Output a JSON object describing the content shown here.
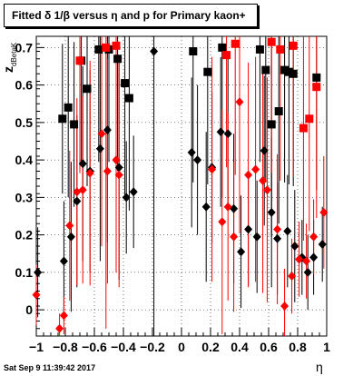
{
  "chart_data": {
    "type": "scatter",
    "title": "Fitted δ 1/β versus η and p for Primary kaon+",
    "xlabel": "η",
    "ylabel_main": "z",
    "ylabel_sub": "dBetaK",
    "xlim": [
      -1,
      1
    ],
    "ylim": [
      -0.07,
      0.73
    ],
    "x_ticks": [
      -1,
      -0.8,
      -0.6,
      -0.4,
      -0.2,
      0,
      0.2,
      0.4,
      0.6,
      0.8,
      1
    ],
    "x_tick_labels": [
      "−1",
      "−0.8",
      "−0.6",
      "−0.4",
      "−0.2",
      "0",
      "0.2",
      "0.4",
      "0.6",
      "0.8",
      "1"
    ],
    "y_ticks": [
      0,
      0.1,
      0.2,
      0.3,
      0.4,
      0.5,
      0.6,
      0.7
    ],
    "y_tick_labels": [
      "0",
      "0.1",
      "0.2",
      "0.3",
      "0.4",
      "0.5",
      "0.6",
      "0.7"
    ],
    "grid": true,
    "colors": {
      "black": "#000000",
      "red": "#ff0000"
    },
    "series": [
      {
        "color": "black",
        "marker": "square",
        "points": [
          {
            "x": -0.82,
            "y": 0.51,
            "err": 0.2
          },
          {
            "x": -0.78,
            "y": 0.54,
            "err": 0.24
          },
          {
            "x": -0.74,
            "y": 0.495,
            "err": 0.22
          },
          {
            "x": -0.69,
            "y": 0.665,
            "err": 0.27
          },
          {
            "x": -0.65,
            "y": 0.59,
            "err": 0.26
          },
          {
            "x": -0.57,
            "y": 0.695,
            "err": 0.3
          },
          {
            "x": -0.5,
            "y": 0.695,
            "err": 0.3
          },
          {
            "x": -0.44,
            "y": 0.67,
            "err": 0.3
          },
          {
            "x": -0.39,
            "y": 0.605,
            "err": 0.3
          },
          {
            "x": -0.36,
            "y": 0.565,
            "err": 0.3
          },
          {
            "x": 0.08,
            "y": 0.69,
            "err": 0.35
          },
          {
            "x": 0.18,
            "y": 0.635,
            "err": 0.3
          },
          {
            "x": 0.28,
            "y": 0.7,
            "err": 0.4
          },
          {
            "x": 0.54,
            "y": 0.695,
            "err": 0.3
          },
          {
            "x": 0.58,
            "y": 0.64,
            "err": 0.3
          },
          {
            "x": 0.62,
            "y": 0.495,
            "err": 0.3
          },
          {
            "x": 0.67,
            "y": 0.53,
            "err": 0.3
          },
          {
            "x": 0.71,
            "y": 0.64,
            "err": 0.3
          },
          {
            "x": 0.74,
            "y": 0.635,
            "err": 0.3
          },
          {
            "x": 0.77,
            "y": 0.63,
            "err": 0.3
          },
          {
            "x": 0.93,
            "y": 0.62,
            "err": 0.3
          }
        ]
      },
      {
        "color": "black",
        "marker": "diamond",
        "points": [
          {
            "x": -0.99,
            "y": 0.1,
            "err": 0.12
          },
          {
            "x": -0.81,
            "y": 0.13,
            "err": 0.16
          },
          {
            "x": -0.76,
            "y": 0.195,
            "err": 0.2
          },
          {
            "x": -0.72,
            "y": 0.29,
            "err": 0.23
          },
          {
            "x": -0.68,
            "y": 0.39,
            "err": 0.26
          },
          {
            "x": -0.63,
            "y": 0.37,
            "err": 0.27
          },
          {
            "x": -0.56,
            "y": 0.43,
            "err": 0.3
          },
          {
            "x": -0.51,
            "y": 0.48,
            "err": 0.3
          },
          {
            "x": -0.43,
            "y": 0.38,
            "err": 0.3
          },
          {
            "x": -0.38,
            "y": 0.3,
            "err": 0.15
          },
          {
            "x": -0.33,
            "y": 0.315,
            "err": 0.15
          },
          {
            "x": -0.19,
            "y": 0.69,
            "err": 0.8
          },
          {
            "x": 0.07,
            "y": 0.42,
            "err": 0.2
          },
          {
            "x": 0.11,
            "y": 0.4,
            "err": 0.2
          },
          {
            "x": 0.17,
            "y": 0.275,
            "err": 0.2
          },
          {
            "x": 0.21,
            "y": 0.38,
            "err": 0.2
          },
          {
            "x": 0.27,
            "y": 0.475,
            "err": 0.2
          },
          {
            "x": 0.32,
            "y": 0.47,
            "err": 0.2
          },
          {
            "x": 0.36,
            "y": 0.27,
            "err": 0.2
          },
          {
            "x": 0.41,
            "y": 0.155,
            "err": 0.15
          },
          {
            "x": 0.46,
            "y": 0.215,
            "err": 0.15
          },
          {
            "x": 0.52,
            "y": 0.195,
            "err": 0.15
          },
          {
            "x": 0.57,
            "y": 0.425,
            "err": 0.2
          },
          {
            "x": 0.62,
            "y": 0.26,
            "err": 0.2
          },
          {
            "x": 0.66,
            "y": 0.19,
            "err": 0.15
          },
          {
            "x": 0.73,
            "y": 0.21,
            "err": 0.15
          },
          {
            "x": 0.78,
            "y": 0.17,
            "err": 0.15
          },
          {
            "x": 0.83,
            "y": 0.14,
            "err": 0.1
          },
          {
            "x": 0.87,
            "y": 0.1,
            "err": 0.1
          },
          {
            "x": 0.91,
            "y": 0.14,
            "err": 0.1
          },
          {
            "x": 0.97,
            "y": 0.175,
            "err": 0.1
          }
        ]
      },
      {
        "color": "red",
        "marker": "square",
        "points": [
          {
            "x": -0.7,
            "y": 0.665,
            "err": 0.3
          },
          {
            "x": -0.52,
            "y": 0.7,
            "err": 0.75
          },
          {
            "x": -0.45,
            "y": 0.705,
            "err": 0.35
          },
          {
            "x": 0.31,
            "y": 0.68,
            "err": 0.3
          },
          {
            "x": 0.37,
            "y": 0.71,
            "err": 0.35
          },
          {
            "x": 0.62,
            "y": 0.715,
            "err": 0.35
          },
          {
            "x": 0.68,
            "y": 0.695,
            "err": 0.35
          },
          {
            "x": 0.77,
            "y": 0.705,
            "err": 0.35
          },
          {
            "x": 0.84,
            "y": 0.485,
            "err": 0.3
          },
          {
            "x": 0.88,
            "y": 0.51,
            "err": 0.3
          },
          {
            "x": 0.93,
            "y": 0.595,
            "err": 0.35
          }
        ]
      },
      {
        "color": "red",
        "marker": "diamond",
        "points": [
          {
            "x": -1.0,
            "y": 0.04,
            "err": 0.08
          },
          {
            "x": -0.84,
            "y": -0.05,
            "err": 0.04
          },
          {
            "x": -0.81,
            "y": -0.015,
            "err": 0.05
          },
          {
            "x": -0.77,
            "y": 0.225,
            "err": 0.2
          },
          {
            "x": -0.72,
            "y": 0.315,
            "err": 0.25
          },
          {
            "x": -0.68,
            "y": 0.32,
            "err": 0.25
          },
          {
            "x": -0.63,
            "y": 0.365,
            "err": 0.3
          },
          {
            "x": -0.55,
            "y": 0.47,
            "err": 0.3
          },
          {
            "x": -0.51,
            "y": 0.37,
            "err": 0.3
          },
          {
            "x": -0.45,
            "y": 0.4,
            "err": 0.3
          },
          {
            "x": -0.43,
            "y": 0.36,
            "err": 0.3
          },
          {
            "x": 0.21,
            "y": 0.375,
            "err": 0.3
          },
          {
            "x": 0.28,
            "y": 0.235,
            "err": 0.3
          },
          {
            "x": 0.32,
            "y": 0.275,
            "err": 0.25
          },
          {
            "x": 0.36,
            "y": 0.195,
            "err": 0.2
          },
          {
            "x": 0.4,
            "y": 0.555,
            "err": 0.35
          },
          {
            "x": 0.46,
            "y": 0.36,
            "err": 0.3
          },
          {
            "x": 0.51,
            "y": 0.375,
            "err": 0.3
          },
          {
            "x": 0.56,
            "y": 0.345,
            "err": 0.3
          },
          {
            "x": 0.59,
            "y": 0.32,
            "err": 0.3
          },
          {
            "x": 0.66,
            "y": 0.215,
            "err": 0.2
          },
          {
            "x": 0.71,
            "y": 0.01,
            "err": 0.1
          },
          {
            "x": 0.76,
            "y": 0.09,
            "err": 0.1
          },
          {
            "x": 0.81,
            "y": 0.135,
            "err": 0.1
          },
          {
            "x": 0.86,
            "y": 0.13,
            "err": 0.1
          },
          {
            "x": 0.91,
            "y": 0.195,
            "err": 0.1
          },
          {
            "x": 0.98,
            "y": 0.26,
            "err": 0.15
          }
        ]
      }
    ]
  },
  "footer": {
    "timestamp": "Sat Sep  9 11:39:42 2017"
  }
}
